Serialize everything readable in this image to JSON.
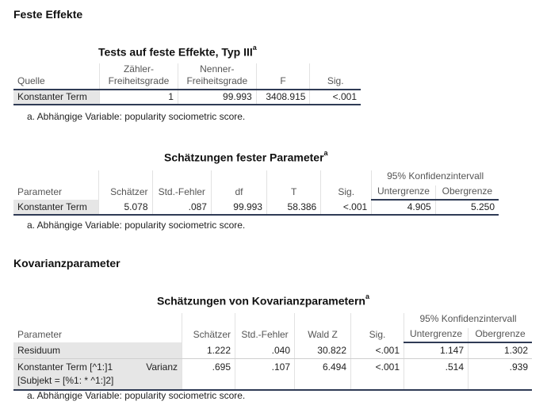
{
  "section1_title": "Feste Effekte",
  "section2_title": "Kovarianzparameter",
  "table1": {
    "title": "Tests auf feste Effekte, Typ III",
    "sup": "a",
    "headers": {
      "quelle": "Quelle",
      "zaehler_1": "Zähler-",
      "zaehler_2": "Freiheitsgrade",
      "nenner_1": "Nenner-",
      "nenner_2": "Freiheitsgrade",
      "f": "F",
      "sig": "Sig."
    },
    "row": {
      "label": "Konstanter Term",
      "zaehler": "1",
      "nenner": "99.993",
      "f": "3408.915",
      "sig": "<.001"
    },
    "footnote": "a. Abhängige Variable: popularity sociometric score."
  },
  "table2": {
    "title": "Schätzungen fester Parameter",
    "sup": "a",
    "headers": {
      "parameter": "Parameter",
      "schaetzer": "Schätzer",
      "stdfehler": "Std.-Fehler",
      "df": "df",
      "t": "T",
      "sig": "Sig.",
      "ci": "95% Konfidenzintervall",
      "lower": "Untergrenze",
      "upper": "Obergrenze"
    },
    "row": {
      "label": "Konstanter Term",
      "schaetzer": "5.078",
      "stdfehler": ".087",
      "df": "99.993",
      "t": "58.386",
      "sig": "<.001",
      "lower": "4.905",
      "upper": "5.250"
    },
    "footnote": "a. Abhängige Variable: popularity sociometric score."
  },
  "table3": {
    "title": "Schätzungen von Kovarianzparametern",
    "sup": "a",
    "headers": {
      "parameter": "Parameter",
      "schaetzer": "Schätzer",
      "stdfehler": "Std.-Fehler",
      "waldz": "Wald Z",
      "sig": "Sig.",
      "ci": "95% Konfidenzintervall",
      "lower": "Untergrenze",
      "upper": "Obergrenze"
    },
    "rows": [
      {
        "label": "Residuum",
        "schaetzer": "1.222",
        "stdfehler": ".040",
        "waldz": "30.822",
        "sig": "<.001",
        "lower": "1.147",
        "upper": "1.302"
      },
      {
        "label_1": "Konstanter Term [^1:]1",
        "label_2": "[Subjekt = [%1: * ^1:]2]",
        "sublabel": "Varianz",
        "schaetzer": ".695",
        "stdfehler": ".107",
        "waldz": "6.494",
        "sig": "<.001",
        "lower": ".514",
        "upper": ".939"
      }
    ],
    "footnote": "a. Abhängige Variable: popularity sociometric score."
  }
}
